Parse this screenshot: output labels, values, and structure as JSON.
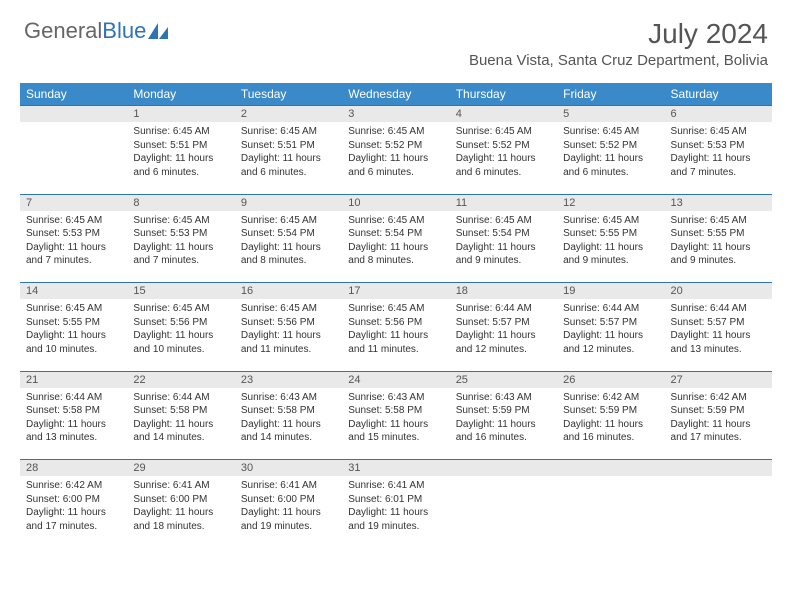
{
  "brand": {
    "first": "General",
    "second": "Blue"
  },
  "title": "July 2024",
  "location": "Buena Vista, Santa Cruz Department, Bolivia",
  "colors": {
    "header_bg": "#3a8ac9",
    "header_text": "#ffffff",
    "daynum_bg": "#e9e9e9",
    "daynum_border": "#2e74b5",
    "brand_blue": "#2e74b5",
    "text": "#333333"
  },
  "weekdays": [
    "Sunday",
    "Monday",
    "Tuesday",
    "Wednesday",
    "Thursday",
    "Friday",
    "Saturday"
  ],
  "weeks": [
    {
      "nums": [
        "",
        "1",
        "2",
        "3",
        "4",
        "5",
        "6"
      ],
      "cells": [
        null,
        {
          "sunrise": "Sunrise: 6:45 AM",
          "sunset": "Sunset: 5:51 PM",
          "daylight": "Daylight: 11 hours and 6 minutes."
        },
        {
          "sunrise": "Sunrise: 6:45 AM",
          "sunset": "Sunset: 5:51 PM",
          "daylight": "Daylight: 11 hours and 6 minutes."
        },
        {
          "sunrise": "Sunrise: 6:45 AM",
          "sunset": "Sunset: 5:52 PM",
          "daylight": "Daylight: 11 hours and 6 minutes."
        },
        {
          "sunrise": "Sunrise: 6:45 AM",
          "sunset": "Sunset: 5:52 PM",
          "daylight": "Daylight: 11 hours and 6 minutes."
        },
        {
          "sunrise": "Sunrise: 6:45 AM",
          "sunset": "Sunset: 5:52 PM",
          "daylight": "Daylight: 11 hours and 6 minutes."
        },
        {
          "sunrise": "Sunrise: 6:45 AM",
          "sunset": "Sunset: 5:53 PM",
          "daylight": "Daylight: 11 hours and 7 minutes."
        }
      ]
    },
    {
      "nums": [
        "7",
        "8",
        "9",
        "10",
        "11",
        "12",
        "13"
      ],
      "cells": [
        {
          "sunrise": "Sunrise: 6:45 AM",
          "sunset": "Sunset: 5:53 PM",
          "daylight": "Daylight: 11 hours and 7 minutes."
        },
        {
          "sunrise": "Sunrise: 6:45 AM",
          "sunset": "Sunset: 5:53 PM",
          "daylight": "Daylight: 11 hours and 7 minutes."
        },
        {
          "sunrise": "Sunrise: 6:45 AM",
          "sunset": "Sunset: 5:54 PM",
          "daylight": "Daylight: 11 hours and 8 minutes."
        },
        {
          "sunrise": "Sunrise: 6:45 AM",
          "sunset": "Sunset: 5:54 PM",
          "daylight": "Daylight: 11 hours and 8 minutes."
        },
        {
          "sunrise": "Sunrise: 6:45 AM",
          "sunset": "Sunset: 5:54 PM",
          "daylight": "Daylight: 11 hours and 9 minutes."
        },
        {
          "sunrise": "Sunrise: 6:45 AM",
          "sunset": "Sunset: 5:55 PM",
          "daylight": "Daylight: 11 hours and 9 minutes."
        },
        {
          "sunrise": "Sunrise: 6:45 AM",
          "sunset": "Sunset: 5:55 PM",
          "daylight": "Daylight: 11 hours and 9 minutes."
        }
      ]
    },
    {
      "nums": [
        "14",
        "15",
        "16",
        "17",
        "18",
        "19",
        "20"
      ],
      "cells": [
        {
          "sunrise": "Sunrise: 6:45 AM",
          "sunset": "Sunset: 5:55 PM",
          "daylight": "Daylight: 11 hours and 10 minutes."
        },
        {
          "sunrise": "Sunrise: 6:45 AM",
          "sunset": "Sunset: 5:56 PM",
          "daylight": "Daylight: 11 hours and 10 minutes."
        },
        {
          "sunrise": "Sunrise: 6:45 AM",
          "sunset": "Sunset: 5:56 PM",
          "daylight": "Daylight: 11 hours and 11 minutes."
        },
        {
          "sunrise": "Sunrise: 6:45 AM",
          "sunset": "Sunset: 5:56 PM",
          "daylight": "Daylight: 11 hours and 11 minutes."
        },
        {
          "sunrise": "Sunrise: 6:44 AM",
          "sunset": "Sunset: 5:57 PM",
          "daylight": "Daylight: 11 hours and 12 minutes."
        },
        {
          "sunrise": "Sunrise: 6:44 AM",
          "sunset": "Sunset: 5:57 PM",
          "daylight": "Daylight: 11 hours and 12 minutes."
        },
        {
          "sunrise": "Sunrise: 6:44 AM",
          "sunset": "Sunset: 5:57 PM",
          "daylight": "Daylight: 11 hours and 13 minutes."
        }
      ]
    },
    {
      "nums": [
        "21",
        "22",
        "23",
        "24",
        "25",
        "26",
        "27"
      ],
      "cells": [
        {
          "sunrise": "Sunrise: 6:44 AM",
          "sunset": "Sunset: 5:58 PM",
          "daylight": "Daylight: 11 hours and 13 minutes."
        },
        {
          "sunrise": "Sunrise: 6:44 AM",
          "sunset": "Sunset: 5:58 PM",
          "daylight": "Daylight: 11 hours and 14 minutes."
        },
        {
          "sunrise": "Sunrise: 6:43 AM",
          "sunset": "Sunset: 5:58 PM",
          "daylight": "Daylight: 11 hours and 14 minutes."
        },
        {
          "sunrise": "Sunrise: 6:43 AM",
          "sunset": "Sunset: 5:58 PM",
          "daylight": "Daylight: 11 hours and 15 minutes."
        },
        {
          "sunrise": "Sunrise: 6:43 AM",
          "sunset": "Sunset: 5:59 PM",
          "daylight": "Daylight: 11 hours and 16 minutes."
        },
        {
          "sunrise": "Sunrise: 6:42 AM",
          "sunset": "Sunset: 5:59 PM",
          "daylight": "Daylight: 11 hours and 16 minutes."
        },
        {
          "sunrise": "Sunrise: 6:42 AM",
          "sunset": "Sunset: 5:59 PM",
          "daylight": "Daylight: 11 hours and 17 minutes."
        }
      ]
    },
    {
      "nums": [
        "28",
        "29",
        "30",
        "31",
        "",
        "",
        ""
      ],
      "cells": [
        {
          "sunrise": "Sunrise: 6:42 AM",
          "sunset": "Sunset: 6:00 PM",
          "daylight": "Daylight: 11 hours and 17 minutes."
        },
        {
          "sunrise": "Sunrise: 6:41 AM",
          "sunset": "Sunset: 6:00 PM",
          "daylight": "Daylight: 11 hours and 18 minutes."
        },
        {
          "sunrise": "Sunrise: 6:41 AM",
          "sunset": "Sunset: 6:00 PM",
          "daylight": "Daylight: 11 hours and 19 minutes."
        },
        {
          "sunrise": "Sunrise: 6:41 AM",
          "sunset": "Sunset: 6:01 PM",
          "daylight": "Daylight: 11 hours and 19 minutes."
        },
        null,
        null,
        null
      ]
    }
  ]
}
